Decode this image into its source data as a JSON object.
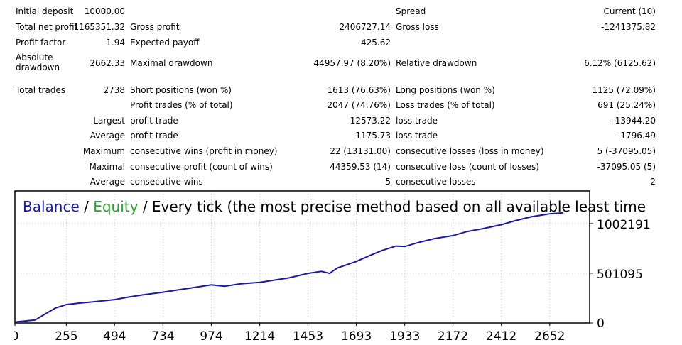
{
  "report": {
    "initial_deposit": {
      "label": "Initial deposit",
      "value": "10000.00"
    },
    "spread": {
      "label": "Spread",
      "value": "Current (10)"
    },
    "total_net_profit": {
      "label": "Total net profit",
      "value": "1165351.32"
    },
    "gross_profit": {
      "label": "Gross profit",
      "value": "2406727.14"
    },
    "gross_loss": {
      "label": "Gross loss",
      "value": "-1241375.82"
    },
    "profit_factor": {
      "label": "Profit factor",
      "value": "1.94"
    },
    "expected_payoff": {
      "label": "Expected payoff",
      "value": "425.62"
    },
    "absolute_drawdown": {
      "label": "Absolute drawdown",
      "value": "2662.33"
    },
    "maximal_drawdown": {
      "label": "Maximal drawdown",
      "value": "44957.97 (8.20%)"
    },
    "relative_drawdown": {
      "label": "Relative drawdown",
      "value": "6.12% (6125.62)"
    },
    "total_trades": {
      "label": "Total trades",
      "value": "2738"
    },
    "short_positions": {
      "label": "Short positions (won %)",
      "value": "1613 (76.63%)"
    },
    "long_positions": {
      "label": "Long positions (won %)",
      "value": "1125 (72.09%)"
    },
    "profit_trades": {
      "label": "Profit trades (% of total)",
      "value": "2047 (74.76%)"
    },
    "loss_trades": {
      "label": "Loss trades (% of total)",
      "value": "691 (25.24%)"
    },
    "largest": {
      "label": "Largest",
      "profit_label": "profit trade",
      "profit_value": "12573.22",
      "loss_label": "loss trade",
      "loss_value": "-13944.20"
    },
    "average": {
      "label": "Average",
      "profit_label": "profit trade",
      "profit_value": "1175.73",
      "loss_label": "loss trade",
      "loss_value": "-1796.49"
    },
    "maximum": {
      "label": "Maximum",
      "wins_label": "consecutive wins (profit in money)",
      "wins_value": "22 (13131.00)",
      "losses_label": "consecutive losses (loss in money)",
      "losses_value": "5 (-37095.05)"
    },
    "maximal": {
      "label": "Maximal",
      "profit_label": "consecutive profit (count of wins)",
      "profit_value": "44359.53 (14)",
      "loss_label": "consecutive loss (count of losses)",
      "loss_value": "-37095.05 (5)"
    },
    "average_consec": {
      "label": "Average",
      "wins_label": "consecutive wins",
      "wins_value": "5",
      "losses_label": "consecutive losses",
      "losses_value": "2"
    }
  },
  "chart_data": {
    "type": "line",
    "title_parts": {
      "balance": "Balance",
      "sep1": " / ",
      "equity": "Equity",
      "rest": " / Every tick (the most precise method based on all available least time"
    },
    "x_ticks": [
      0,
      255,
      494,
      734,
      974,
      1214,
      1453,
      1693,
      1933,
      2172,
      2412,
      2652
    ],
    "y_ticks": [
      0,
      501095,
      1002191
    ],
    "xlim": [
      0,
      2850
    ],
    "ylim": [
      0,
      1330000
    ],
    "grid": true,
    "colors": {
      "balance": "#1a1aa0",
      "equity": "#2ca02c",
      "frame": "#000000",
      "grid": "#c0c0c0"
    },
    "series": [
      {
        "name": "Balance",
        "x": [
          0,
          100,
          150,
          200,
          255,
          320,
          400,
          494,
          560,
          640,
          734,
          800,
          880,
          974,
          1040,
          1120,
          1214,
          1280,
          1360,
          1453,
          1520,
          1560,
          1600,
          1693,
          1760,
          1820,
          1890,
          1933,
          2000,
          2080,
          2172,
          2240,
          2320,
          2412,
          2480,
          2560,
          2652,
          2720
        ],
        "y": [
          10000,
          30000,
          90000,
          150000,
          185000,
          200000,
          215000,
          235000,
          260000,
          285000,
          310000,
          330000,
          355000,
          385000,
          370000,
          395000,
          410000,
          430000,
          455000,
          500000,
          520000,
          500000,
          555000,
          620000,
          680000,
          730000,
          775000,
          770000,
          810000,
          850000,
          880000,
          920000,
          950000,
          990000,
          1030000,
          1070000,
          1100000,
          1110000
        ]
      }
    ]
  }
}
